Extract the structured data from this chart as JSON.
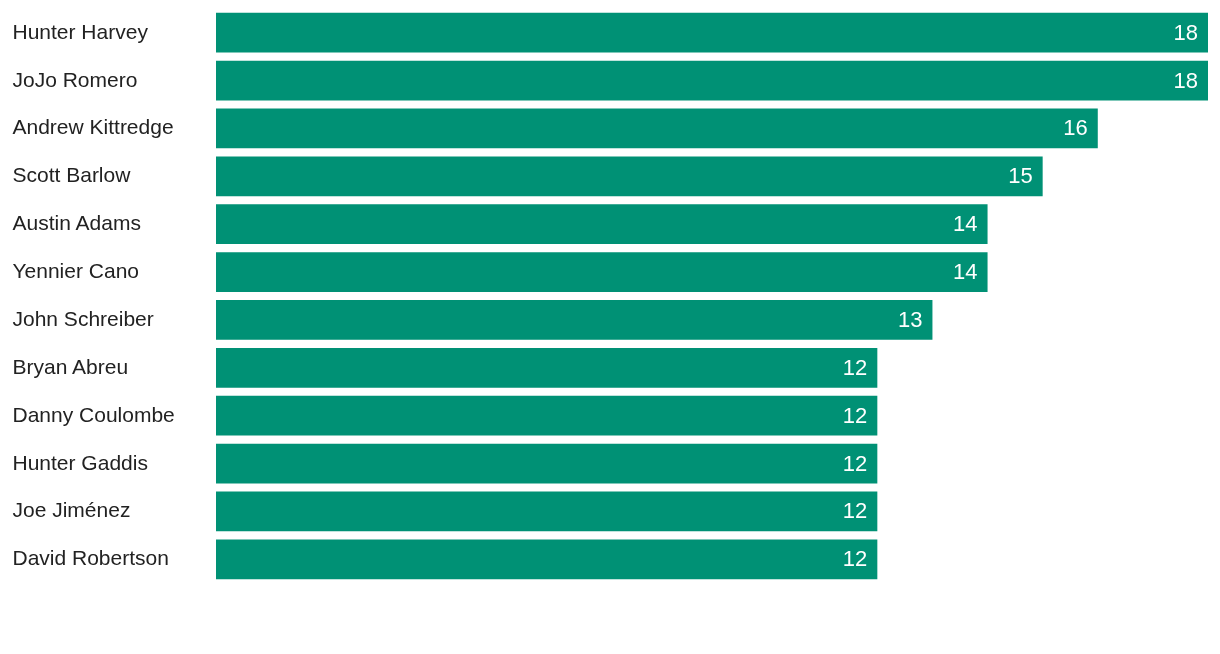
{
  "chart_data": {
    "type": "bar",
    "orientation": "horizontal",
    "categories": [
      "Hunter Harvey",
      "JoJo Romero",
      "Andrew Kittredge",
      "Scott Barlow",
      "Austin Adams",
      "Yennier Cano",
      "John Schreiber",
      "Bryan Abreu",
      "Danny Coulombe",
      "Hunter Gaddis",
      "Joe Jiménez",
      "David Robertson"
    ],
    "values": [
      18,
      18,
      16,
      15,
      14,
      14,
      13,
      12,
      12,
      12,
      12,
      12
    ],
    "color": "#009175",
    "data_labels": true
  }
}
